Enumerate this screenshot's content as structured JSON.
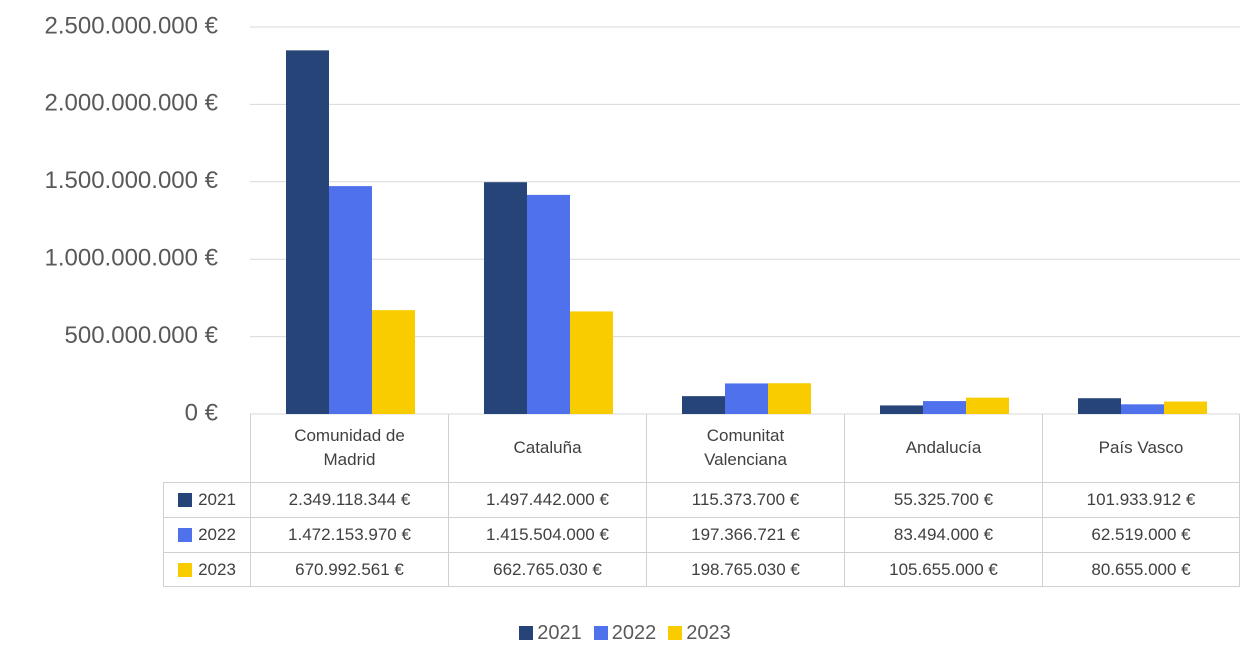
{
  "chart_data": {
    "type": "bar",
    "categories": [
      "Comunidad de Madrid",
      "Cataluña",
      "Comunitat Valenciana",
      "Andalucía",
      "País Vasco"
    ],
    "series": [
      {
        "name": "2021",
        "color": "#264478",
        "values": [
          2349118344,
          1497442000,
          115373700,
          55325700,
          101933912
        ],
        "value_labels": [
          "2.349.118.344 €",
          "1.497.442.000 €",
          "115.373.700 €",
          "55.325.700 €",
          "101.933.912 €"
        ]
      },
      {
        "name": "2022",
        "color": "#4f71eb",
        "values": [
          1472153970,
          1415504000,
          197366721,
          83494000,
          62519000
        ],
        "value_labels": [
          "1.472.153.970 €",
          "1.415.504.000 €",
          "197.366.721 €",
          "83.494.000 €",
          "62.519.000 €"
        ]
      },
      {
        "name": "2023",
        "color": "#f9cc00",
        "values": [
          670992561,
          662765030,
          198765030,
          105655000,
          80655000
        ],
        "value_labels": [
          "670.992.561 €",
          "662.765.030 €",
          "198.765.030 €",
          "105.655.000 €",
          "80.655.000 €"
        ]
      }
    ],
    "ylim": [
      0,
      2500000000
    ],
    "yticks": [
      {
        "value": 0,
        "label": "0 €"
      },
      {
        "value": 500000000,
        "label": "500.000.000 €"
      },
      {
        "value": 1000000000,
        "label": "1.000.000.000 €"
      },
      {
        "value": 1500000000,
        "label": "1.500.000.000 €"
      },
      {
        "value": 2000000000,
        "label": "2.000.000.000 €"
      },
      {
        "value": 2500000000,
        "label": "2.500.000.000 €"
      }
    ],
    "grid": true,
    "legend": "bottom",
    "data_table": true
  }
}
